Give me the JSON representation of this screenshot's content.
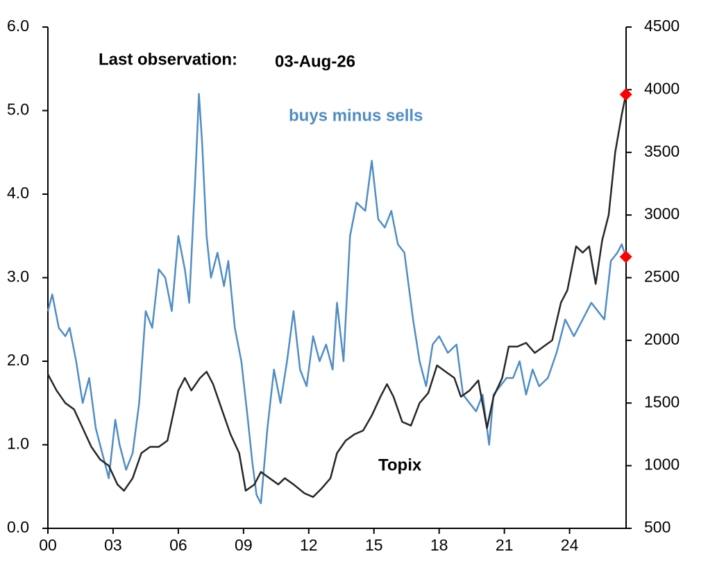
{
  "chart_data": {
    "type": "line",
    "xlim": [
      2000,
      2026.6
    ],
    "xticks": [
      {
        "value": 2000,
        "label": "00"
      },
      {
        "value": 2003,
        "label": "03"
      },
      {
        "value": 2006,
        "label": "06"
      },
      {
        "value": 2009,
        "label": "09"
      },
      {
        "value": 2012,
        "label": "12"
      },
      {
        "value": 2015,
        "label": "15"
      },
      {
        "value": 2018,
        "label": "18"
      },
      {
        "value": 2021,
        "label": "21"
      },
      {
        "value": 2024,
        "label": "24"
      }
    ],
    "ylim": [
      0,
      6
    ],
    "yticks": [
      {
        "value": 0,
        "label": "0.0"
      },
      {
        "value": 1,
        "label": "1.0"
      },
      {
        "value": 2,
        "label": "2.0"
      },
      {
        "value": 3,
        "label": "3.0"
      },
      {
        "value": 4,
        "label": "4.0"
      },
      {
        "value": 5,
        "label": "5.0"
      },
      {
        "value": 6,
        "label": "6.0"
      }
    ],
    "y2lim": [
      500,
      4500
    ],
    "y2ticks": [
      500,
      1000,
      1500,
      2000,
      2500,
      3000,
      3500,
      4000,
      4500
    ],
    "grid": false,
    "marker_last": true,
    "marker_color": "#ff0000",
    "annotations": [
      {
        "text": "Last observation:",
        "color": "#000000"
      },
      {
        "text": "03-Aug-26",
        "color": "#000000"
      },
      {
        "text": "buys minus sells",
        "color": "#4f8dc4"
      },
      {
        "text": "Topix",
        "color": "#000000"
      }
    ],
    "series": [
      {
        "name": "buys minus sells",
        "color": "#4f8dc4",
        "x": [
          2000.0,
          2000.2,
          2000.5,
          2000.8,
          2001.0,
          2001.3,
          2001.6,
          2001.9,
          2002.2,
          2002.5,
          2002.8,
          2003.1,
          2003.3,
          2003.6,
          2003.9,
          2004.2,
          2004.5,
          2004.8,
          2005.1,
          2005.4,
          2005.7,
          2006.0,
          2006.3,
          2006.5,
          2006.8,
          2006.95,
          2007.1,
          2007.3,
          2007.5,
          2007.8,
          2008.1,
          2008.3,
          2008.6,
          2008.9,
          2009.2,
          2009.4,
          2009.6,
          2009.8,
          2010.1,
          2010.4,
          2010.7,
          2011.0,
          2011.3,
          2011.6,
          2011.9,
          2012.2,
          2012.5,
          2012.8,
          2013.1,
          2013.3,
          2013.6,
          2013.9,
          2014.2,
          2014.6,
          2014.9,
          2015.2,
          2015.5,
          2015.8,
          2016.1,
          2016.4,
          2016.8,
          2017.1,
          2017.4,
          2017.7,
          2018.0,
          2018.4,
          2018.8,
          2019.1,
          2019.4,
          2019.7,
          2020.0,
          2020.3,
          2020.5,
          2020.8,
          2021.1,
          2021.4,
          2021.7,
          2022.0,
          2022.3,
          2022.6,
          2023.0,
          2023.4,
          2023.8,
          2024.2,
          2024.6,
          2025.0,
          2025.3,
          2025.6,
          2025.9,
          2026.2,
          2026.4,
          2026.59
        ],
        "values": [
          2.6,
          2.8,
          2.4,
          2.3,
          2.4,
          2.0,
          1.5,
          1.8,
          1.2,
          0.9,
          0.6,
          1.3,
          1.0,
          0.7,
          0.9,
          1.5,
          2.6,
          2.4,
          3.1,
          3.0,
          2.6,
          3.5,
          3.1,
          2.7,
          4.3,
          5.2,
          4.6,
          3.5,
          3.0,
          3.3,
          2.9,
          3.2,
          2.4,
          2.0,
          1.3,
          0.8,
          0.4,
          0.3,
          1.2,
          1.9,
          1.5,
          2.0,
          2.6,
          1.9,
          1.7,
          2.3,
          2.0,
          2.2,
          1.9,
          2.7,
          2.0,
          3.5,
          3.9,
          3.8,
          4.4,
          3.7,
          3.6,
          3.8,
          3.4,
          3.3,
          2.5,
          2.0,
          1.7,
          2.2,
          2.3,
          2.1,
          2.2,
          1.6,
          1.5,
          1.4,
          1.6,
          1.0,
          1.6,
          1.7,
          1.8,
          1.8,
          2.0,
          1.6,
          1.9,
          1.7,
          1.8,
          2.1,
          2.5,
          2.3,
          2.5,
          2.7,
          2.6,
          2.5,
          3.2,
          3.3,
          3.4,
          3.25
        ]
      },
      {
        "name": "Topix",
        "color": "#262626",
        "axis": "y2",
        "x": [
          2000.0,
          2000.4,
          2000.8,
          2001.2,
          2001.6,
          2002.0,
          2002.4,
          2002.8,
          2003.2,
          2003.5,
          2003.9,
          2004.3,
          2004.7,
          2005.1,
          2005.5,
          2006.0,
          2006.3,
          2006.6,
          2007.0,
          2007.3,
          2007.6,
          2008.0,
          2008.4,
          2008.8,
          2009.1,
          2009.5,
          2009.8,
          2010.2,
          2010.6,
          2010.9,
          2011.3,
          2011.8,
          2012.2,
          2012.6,
          2013.0,
          2013.3,
          2013.7,
          2014.1,
          2014.5,
          2014.9,
          2015.3,
          2015.6,
          2015.9,
          2016.3,
          2016.7,
          2017.1,
          2017.5,
          2017.9,
          2018.3,
          2018.7,
          2019.0,
          2019.4,
          2019.8,
          2020.2,
          2020.5,
          2020.9,
          2021.2,
          2021.6,
          2022.0,
          2022.4,
          2022.8,
          2023.2,
          2023.6,
          2023.9,
          2024.3,
          2024.6,
          2024.9,
          2025.2,
          2025.5,
          2025.8,
          2026.1,
          2026.4,
          2026.59
        ],
        "values": [
          1730,
          1600,
          1500,
          1450,
          1300,
          1150,
          1050,
          1000,
          850,
          800,
          900,
          1100,
          1150,
          1150,
          1200,
          1600,
          1700,
          1600,
          1700,
          1750,
          1650,
          1450,
          1250,
          1100,
          800,
          850,
          950,
          900,
          850,
          900,
          850,
          780,
          750,
          820,
          900,
          1100,
          1200,
          1250,
          1280,
          1400,
          1550,
          1650,
          1550,
          1350,
          1320,
          1500,
          1580,
          1800,
          1750,
          1700,
          1550,
          1600,
          1680,
          1300,
          1550,
          1700,
          1950,
          1950,
          1980,
          1900,
          1950,
          2000,
          2300,
          2400,
          2750,
          2700,
          2750,
          2450,
          2800,
          3000,
          3500,
          3800,
          3962
        ]
      }
    ]
  }
}
